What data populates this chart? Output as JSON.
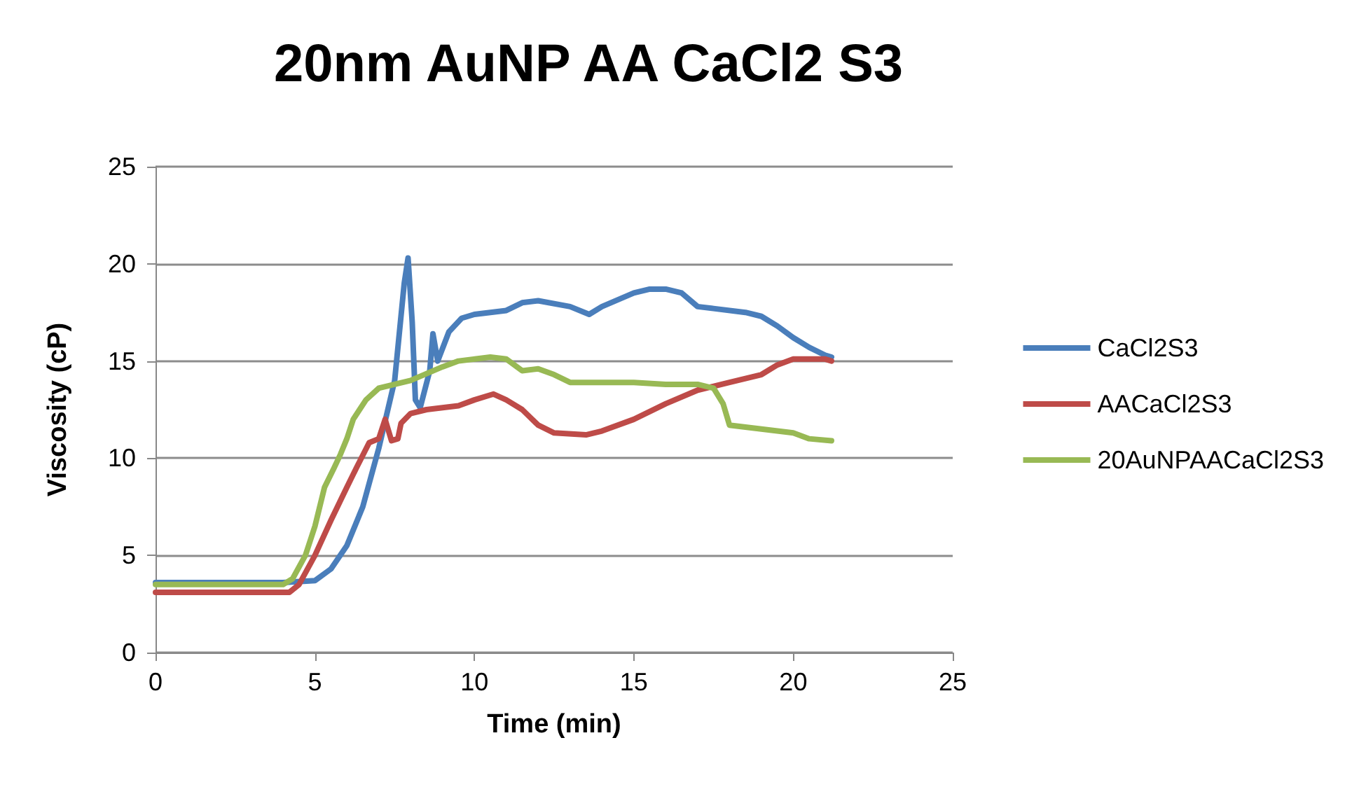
{
  "chart_data": {
    "type": "line",
    "title": "20nm AuNP AA CaCl2 S3",
    "xlabel": "Time (min)",
    "ylabel": "Viscosity (cP)",
    "xlim": [
      0,
      25
    ],
    "xticks": [
      0,
      5,
      10,
      15,
      20,
      25
    ],
    "ylim": [
      0,
      25
    ],
    "yticks": [
      0,
      5,
      10,
      15,
      20,
      25
    ],
    "grid": "y",
    "legend": "right",
    "marker": "none",
    "line_style": "solid",
    "series": [
      {
        "name": "CaCl2S3",
        "color": "#4a7ebb",
        "x": [
          0,
          4,
          5,
          5.5,
          6,
          6.5,
          7,
          7.5,
          7.8,
          7.92,
          8.05,
          8.15,
          8.3,
          8.6,
          8.7,
          8.85,
          9.2,
          9.6,
          10,
          11,
          11.5,
          12,
          13,
          13.6,
          14,
          15,
          15.5,
          16,
          16.5,
          17,
          17.5,
          18.5,
          19,
          19.5,
          20,
          20.5,
          21,
          21.2
        ],
        "values": [
          3.6,
          3.6,
          3.7,
          4.3,
          5.5,
          7.5,
          10.5,
          14,
          19,
          20.3,
          17,
          13,
          12.6,
          14.5,
          16.4,
          15,
          16.5,
          17.2,
          17.4,
          17.6,
          18,
          18.1,
          17.8,
          17.4,
          17.8,
          18.5,
          18.7,
          18.7,
          18.5,
          17.8,
          17.7,
          17.5,
          17.3,
          16.8,
          16.2,
          15.7,
          15.3,
          15.2
        ]
      },
      {
        "name": "AACaCl2S3",
        "color": "#be4b48",
        "x": [
          0,
          4.2,
          4.5,
          5,
          5.5,
          6,
          6.3,
          6.7,
          7,
          7.2,
          7.4,
          7.6,
          7.7,
          8,
          8.5,
          9.5,
          10,
          10.6,
          11,
          11.5,
          12,
          12.5,
          13.5,
          14,
          15,
          16,
          17,
          18,
          18.5,
          19,
          19.5,
          20,
          21,
          21.2
        ],
        "values": [
          3.1,
          3.1,
          3.5,
          5,
          6.8,
          8.5,
          9.5,
          10.8,
          11,
          12,
          10.9,
          11,
          11.8,
          12.3,
          12.5,
          12.7,
          13,
          13.3,
          13,
          12.5,
          11.7,
          11.3,
          11.2,
          11.4,
          12,
          12.8,
          13.5,
          13.9,
          14.1,
          14.3,
          14.8,
          15.1,
          15.1,
          15
        ]
      },
      {
        "name": "20AuNPAACaCl2S3",
        "color": "#98b954",
        "x": [
          0,
          4,
          4.3,
          4.7,
          5,
          5.3,
          5.6,
          5.8,
          6,
          6.2,
          6.6,
          7,
          8,
          9,
          9.5,
          10.5,
          11,
          11.5,
          12,
          12.5,
          13,
          14,
          15,
          16,
          17,
          17.5,
          17.8,
          18,
          19,
          20,
          20.5,
          21.2
        ],
        "values": [
          3.5,
          3.5,
          3.8,
          5,
          6.5,
          8.5,
          9.5,
          10.2,
          11,
          12,
          13,
          13.6,
          14,
          14.7,
          15,
          15.2,
          15.1,
          14.5,
          14.6,
          14.3,
          13.9,
          13.9,
          13.9,
          13.8,
          13.8,
          13.6,
          12.8,
          11.7,
          11.5,
          11.3,
          11,
          10.9
        ]
      }
    ]
  }
}
